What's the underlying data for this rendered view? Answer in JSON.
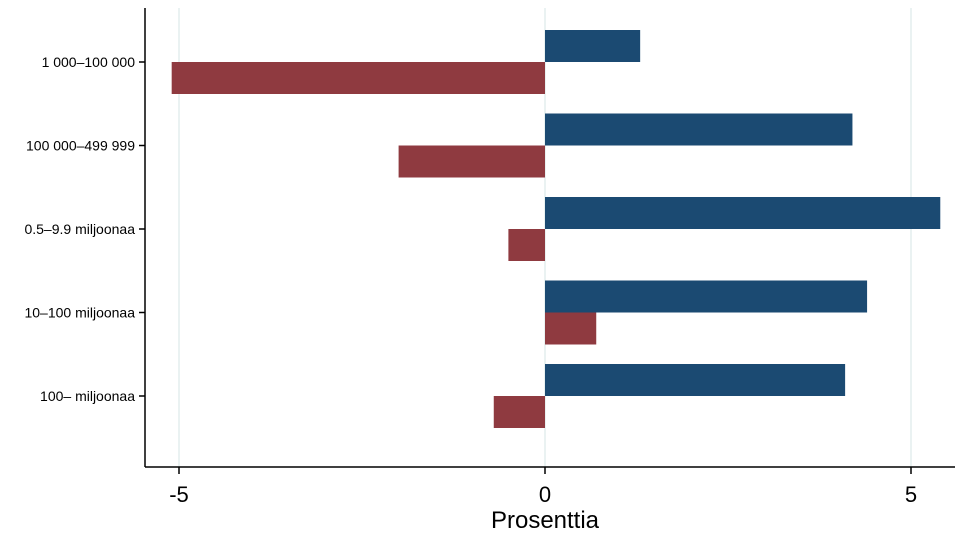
{
  "chart_data": {
    "type": "bar",
    "orientation": "horizontal",
    "categories": [
      "1 000–100 000",
      "100 000–499 999",
      "0.5–9.9 miljoonaa",
      "10–100 miljoonaa",
      "100– miljoonaa"
    ],
    "series": [
      {
        "values": [
          1.3,
          4.2,
          5.4,
          4.4,
          4.1
        ],
        "color": "#1b4a72"
      },
      {
        "values": [
          -5.1,
          -2.0,
          -0.5,
          0.7,
          -0.7
        ],
        "color": "#8f3a40"
      }
    ],
    "xlabel": "Prosenttia",
    "ylabel": "",
    "xlim": [
      -5.4,
      5.5
    ],
    "xticks": [
      -5,
      0,
      5
    ],
    "xtick_labels": [
      "-5",
      "0",
      "5"
    ],
    "grid": true,
    "legend": "none"
  }
}
